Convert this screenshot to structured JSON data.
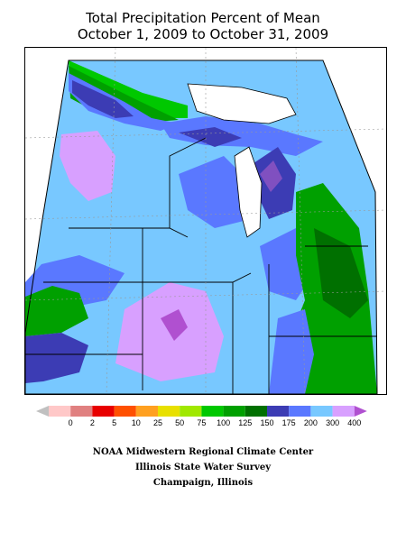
{
  "map": {
    "title_line1": "Total Precipitation Percent of Mean",
    "title_line2": "October 1, 2009 to October 31, 2009",
    "legend": {
      "tick_labels": [
        "0",
        "2",
        "5",
        "10",
        "25",
        "50",
        "75",
        "100",
        "125",
        "150",
        "175",
        "200",
        "300",
        "400"
      ],
      "colors": [
        "#ffc8c8",
        "#e08080",
        "#e80000",
        "#ff5000",
        "#ffa020",
        "#e8e000",
        "#a0e800",
        "#00c800",
        "#00a000",
        "#007000",
        "#3c3cb4",
        "#5a78ff",
        "#78c8ff",
        "#d8a0ff",
        "#b050d0"
      ]
    },
    "credits": {
      "line1": "NOAA Midwestern Regional Climate Center",
      "line2": "Illinois State Water Survey",
      "line3": "Champaign, Illinois"
    }
  }
}
